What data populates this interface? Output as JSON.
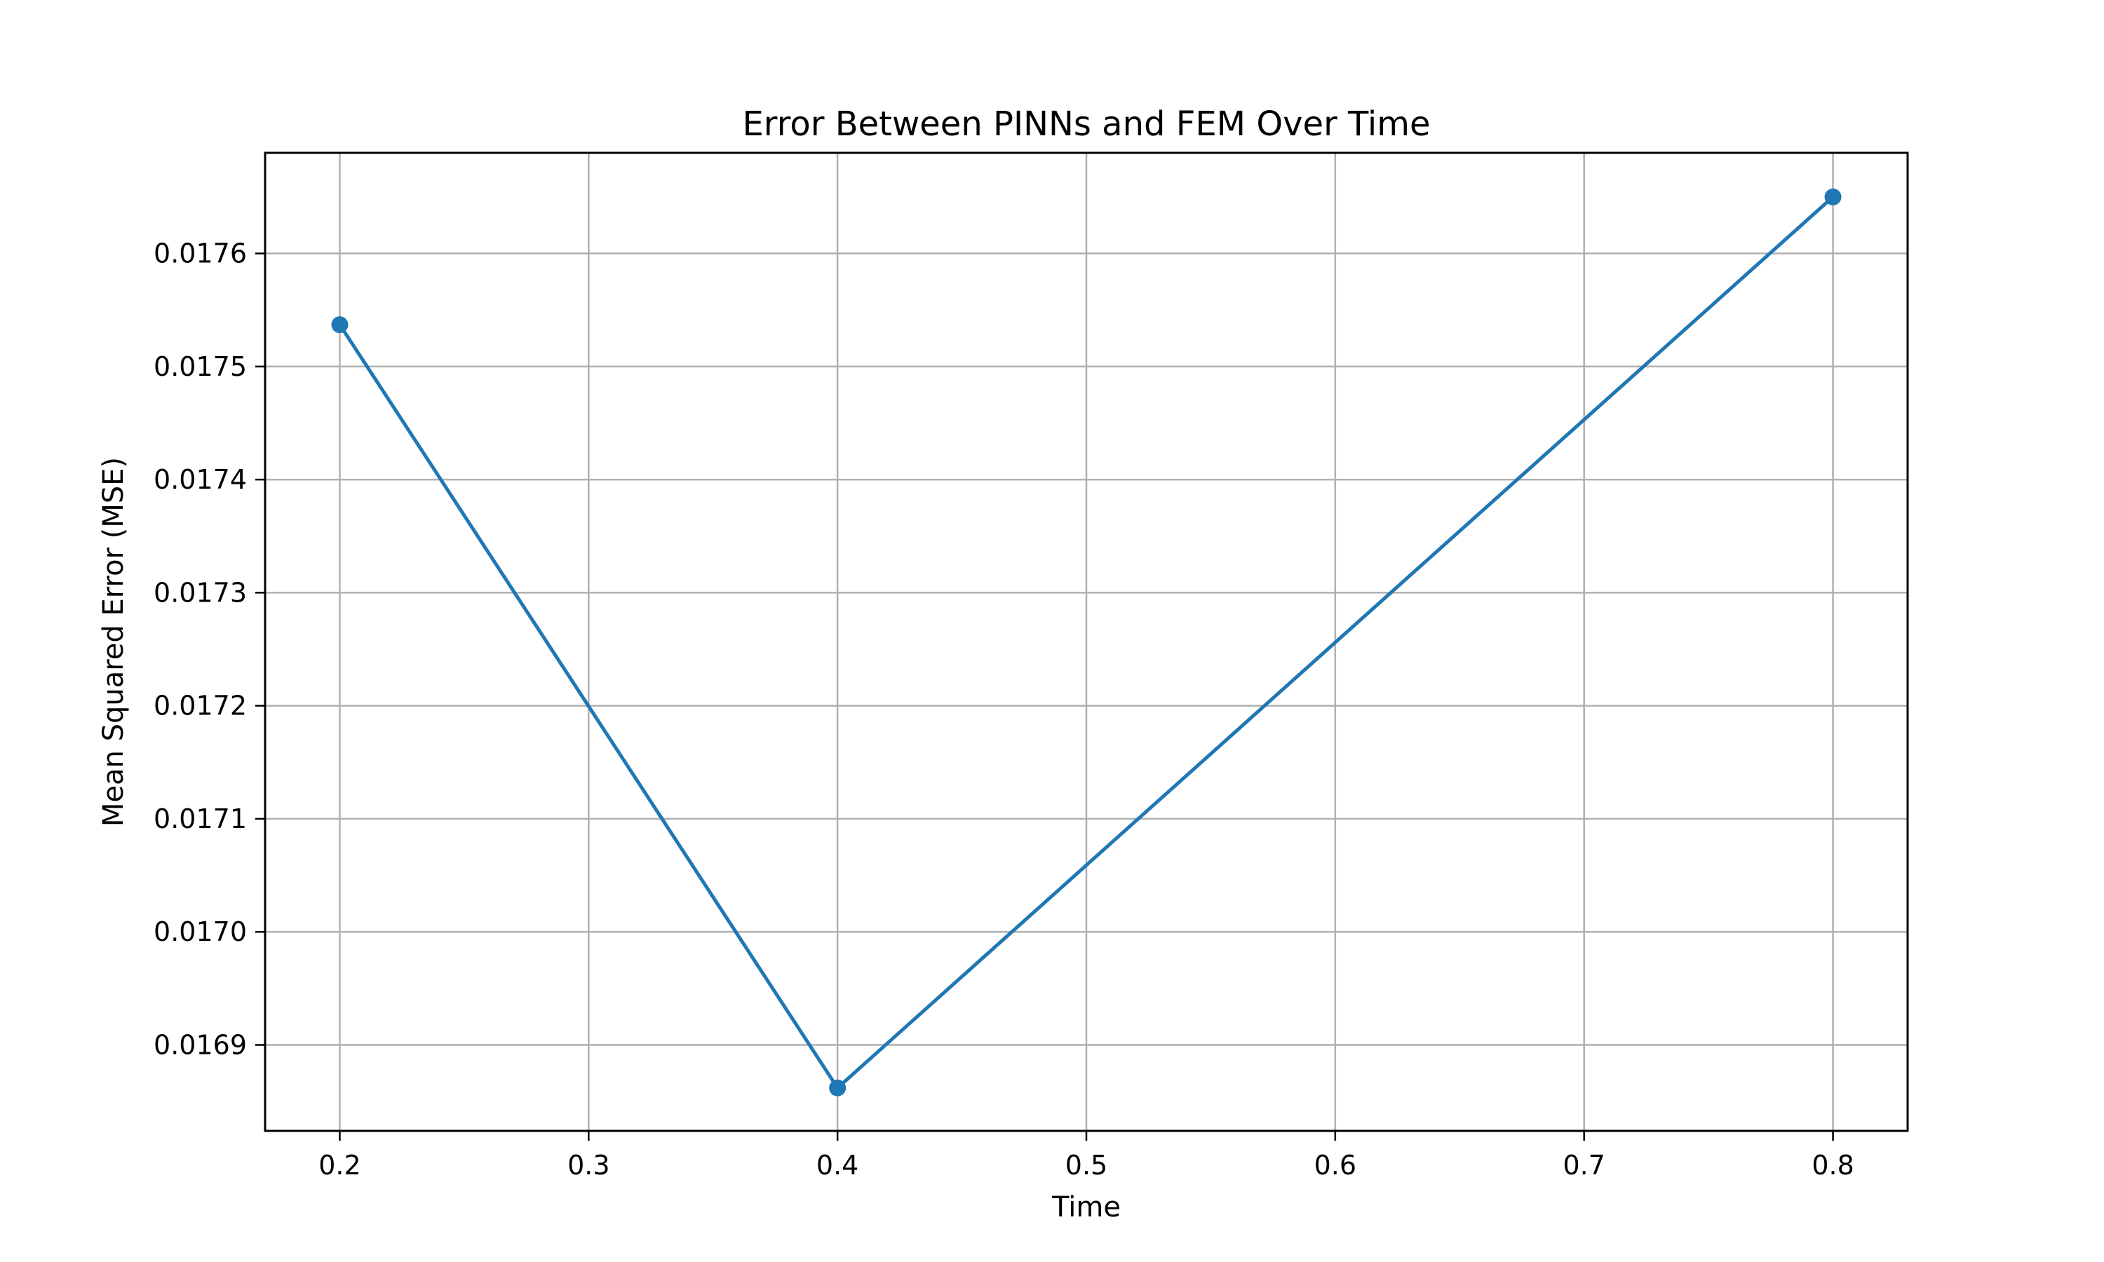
{
  "chart_data": {
    "type": "line",
    "title": "Error Between PINNs and FEM Over Time",
    "xlabel": "Time",
    "ylabel": "Mean Squared Error (MSE)",
    "xlim": [
      0.17,
      0.83
    ],
    "ylim": [
      0.016824,
      0.017689
    ],
    "grid": true,
    "xticks": [
      0.2,
      0.3,
      0.4,
      0.5,
      0.6,
      0.7,
      0.8
    ],
    "xtick_labels": [
      "0.2",
      "0.3",
      "0.4",
      "0.5",
      "0.6",
      "0.7",
      "0.8"
    ],
    "yticks": [
      0.0169,
      0.017,
      0.0171,
      0.0172,
      0.0173,
      0.0174,
      0.0175,
      0.0176
    ],
    "ytick_labels": [
      "0.0169",
      "0.0170",
      "0.0171",
      "0.0172",
      "0.0173",
      "0.0174",
      "0.0175",
      "0.0176"
    ],
    "series": [
      {
        "name": "MSE",
        "color": "#1f77b4",
        "marker": "circle",
        "x": [
          0.2,
          0.4,
          0.8
        ],
        "y": [
          0.017537,
          0.016862,
          0.01765
        ]
      }
    ]
  }
}
